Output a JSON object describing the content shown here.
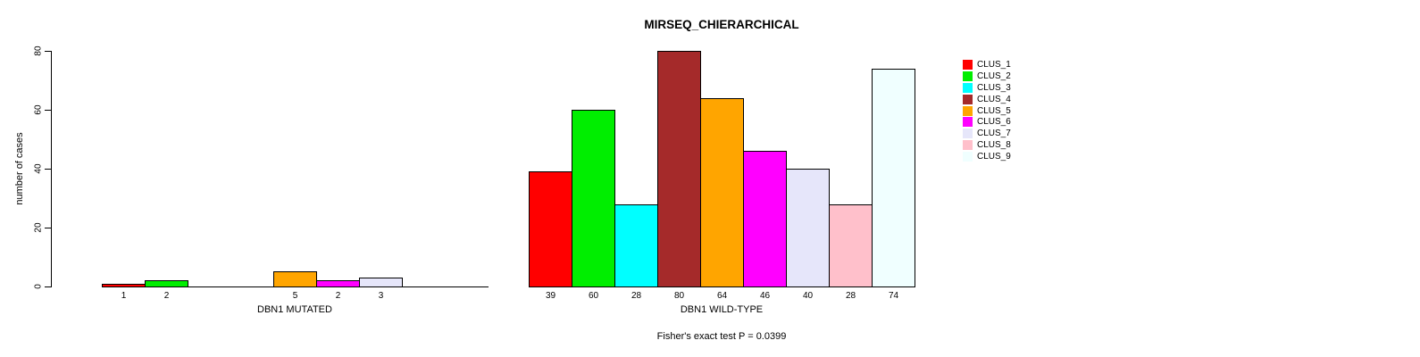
{
  "chart_data": {
    "type": "bar",
    "title": "MIRSEQ_CHIERARCHICAL",
    "ylabel": "number of cases",
    "annotation": "Fisher's exact test P = 0.0399",
    "ylim": [
      0,
      80
    ],
    "yticks": [
      0,
      20,
      40,
      60,
      80
    ],
    "grid": false,
    "legend_position": "right-outside",
    "bar_value_labels_shown_for_nonzero_only": true,
    "clusters": [
      {
        "name": "CLUS_1",
        "color": "#ff0000"
      },
      {
        "name": "CLUS_2",
        "color": "#00ee00"
      },
      {
        "name": "CLUS_3",
        "color": "#00ffff"
      },
      {
        "name": "CLUS_4",
        "color": "#a52a2a"
      },
      {
        "name": "CLUS_5",
        "color": "#ffa500"
      },
      {
        "name": "CLUS_6",
        "color": "#ff00ff"
      },
      {
        "name": "CLUS_7",
        "color": "#e6e6fa"
      },
      {
        "name": "CLUS_8",
        "color": "#ffc0cb"
      },
      {
        "name": "CLUS_9",
        "color": "#f0ffff"
      }
    ],
    "groups": [
      {
        "label": "DBN1 MUTATED",
        "values": [
          1,
          2,
          0,
          0,
          5,
          2,
          3,
          0,
          0
        ]
      },
      {
        "label": "DBN1 WILD-TYPE",
        "values": [
          39,
          60,
          28,
          80,
          64,
          46,
          40,
          28,
          74
        ]
      }
    ]
  }
}
